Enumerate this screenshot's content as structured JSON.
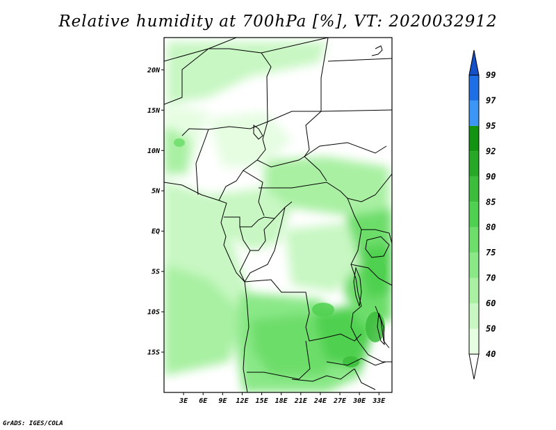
{
  "title": "Relative humidity at 700hPa [%], VT: 2020032912",
  "credit": "GrADS: IGES/COLA",
  "map": {
    "lat_range": [
      -20,
      24
    ],
    "lon_range": [
      0,
      35
    ],
    "lat_ticks": [
      {
        "value": 20,
        "label": "20N"
      },
      {
        "value": 15,
        "label": "15N"
      },
      {
        "value": 10,
        "label": "10N"
      },
      {
        "value": 5,
        "label": "5N"
      },
      {
        "value": 0,
        "label": "EQ"
      },
      {
        "value": -5,
        "label": "5S"
      },
      {
        "value": -10,
        "label": "10S"
      },
      {
        "value": -15,
        "label": "15S"
      }
    ],
    "lon_ticks": [
      {
        "value": 3,
        "label": "3E"
      },
      {
        "value": 6,
        "label": "6E"
      },
      {
        "value": 9,
        "label": "9E"
      },
      {
        "value": 12,
        "label": "12E"
      },
      {
        "value": 15,
        "label": "15E"
      },
      {
        "value": 18,
        "label": "18E"
      },
      {
        "value": 21,
        "label": "21E"
      },
      {
        "value": 24,
        "label": "24E"
      },
      {
        "value": 27,
        "label": "27E"
      },
      {
        "value": 30,
        "label": "30E"
      },
      {
        "value": 33,
        "label": "33E"
      }
    ]
  },
  "colorbar": {
    "levels": [
      {
        "label": "40",
        "color": "#e6fde2"
      },
      {
        "label": "50",
        "color": "#c8f7c3"
      },
      {
        "label": "60",
        "color": "#a9f0a3"
      },
      {
        "label": "70",
        "color": "#8ae887"
      },
      {
        "label": "75",
        "color": "#6ddd6b"
      },
      {
        "label": "80",
        "color": "#50d050"
      },
      {
        "label": "85",
        "color": "#3cbd3c"
      },
      {
        "label": "90",
        "color": "#27a827"
      },
      {
        "label": "92",
        "color": "#129412"
      },
      {
        "label": "95",
        "color": "#3c96f5"
      },
      {
        "label": "97",
        "color": "#1e6ee6"
      },
      {
        "label": "99",
        "color": "#1450c8"
      }
    ],
    "below_color": "#ffffff",
    "above_color": "#1450c8"
  }
}
